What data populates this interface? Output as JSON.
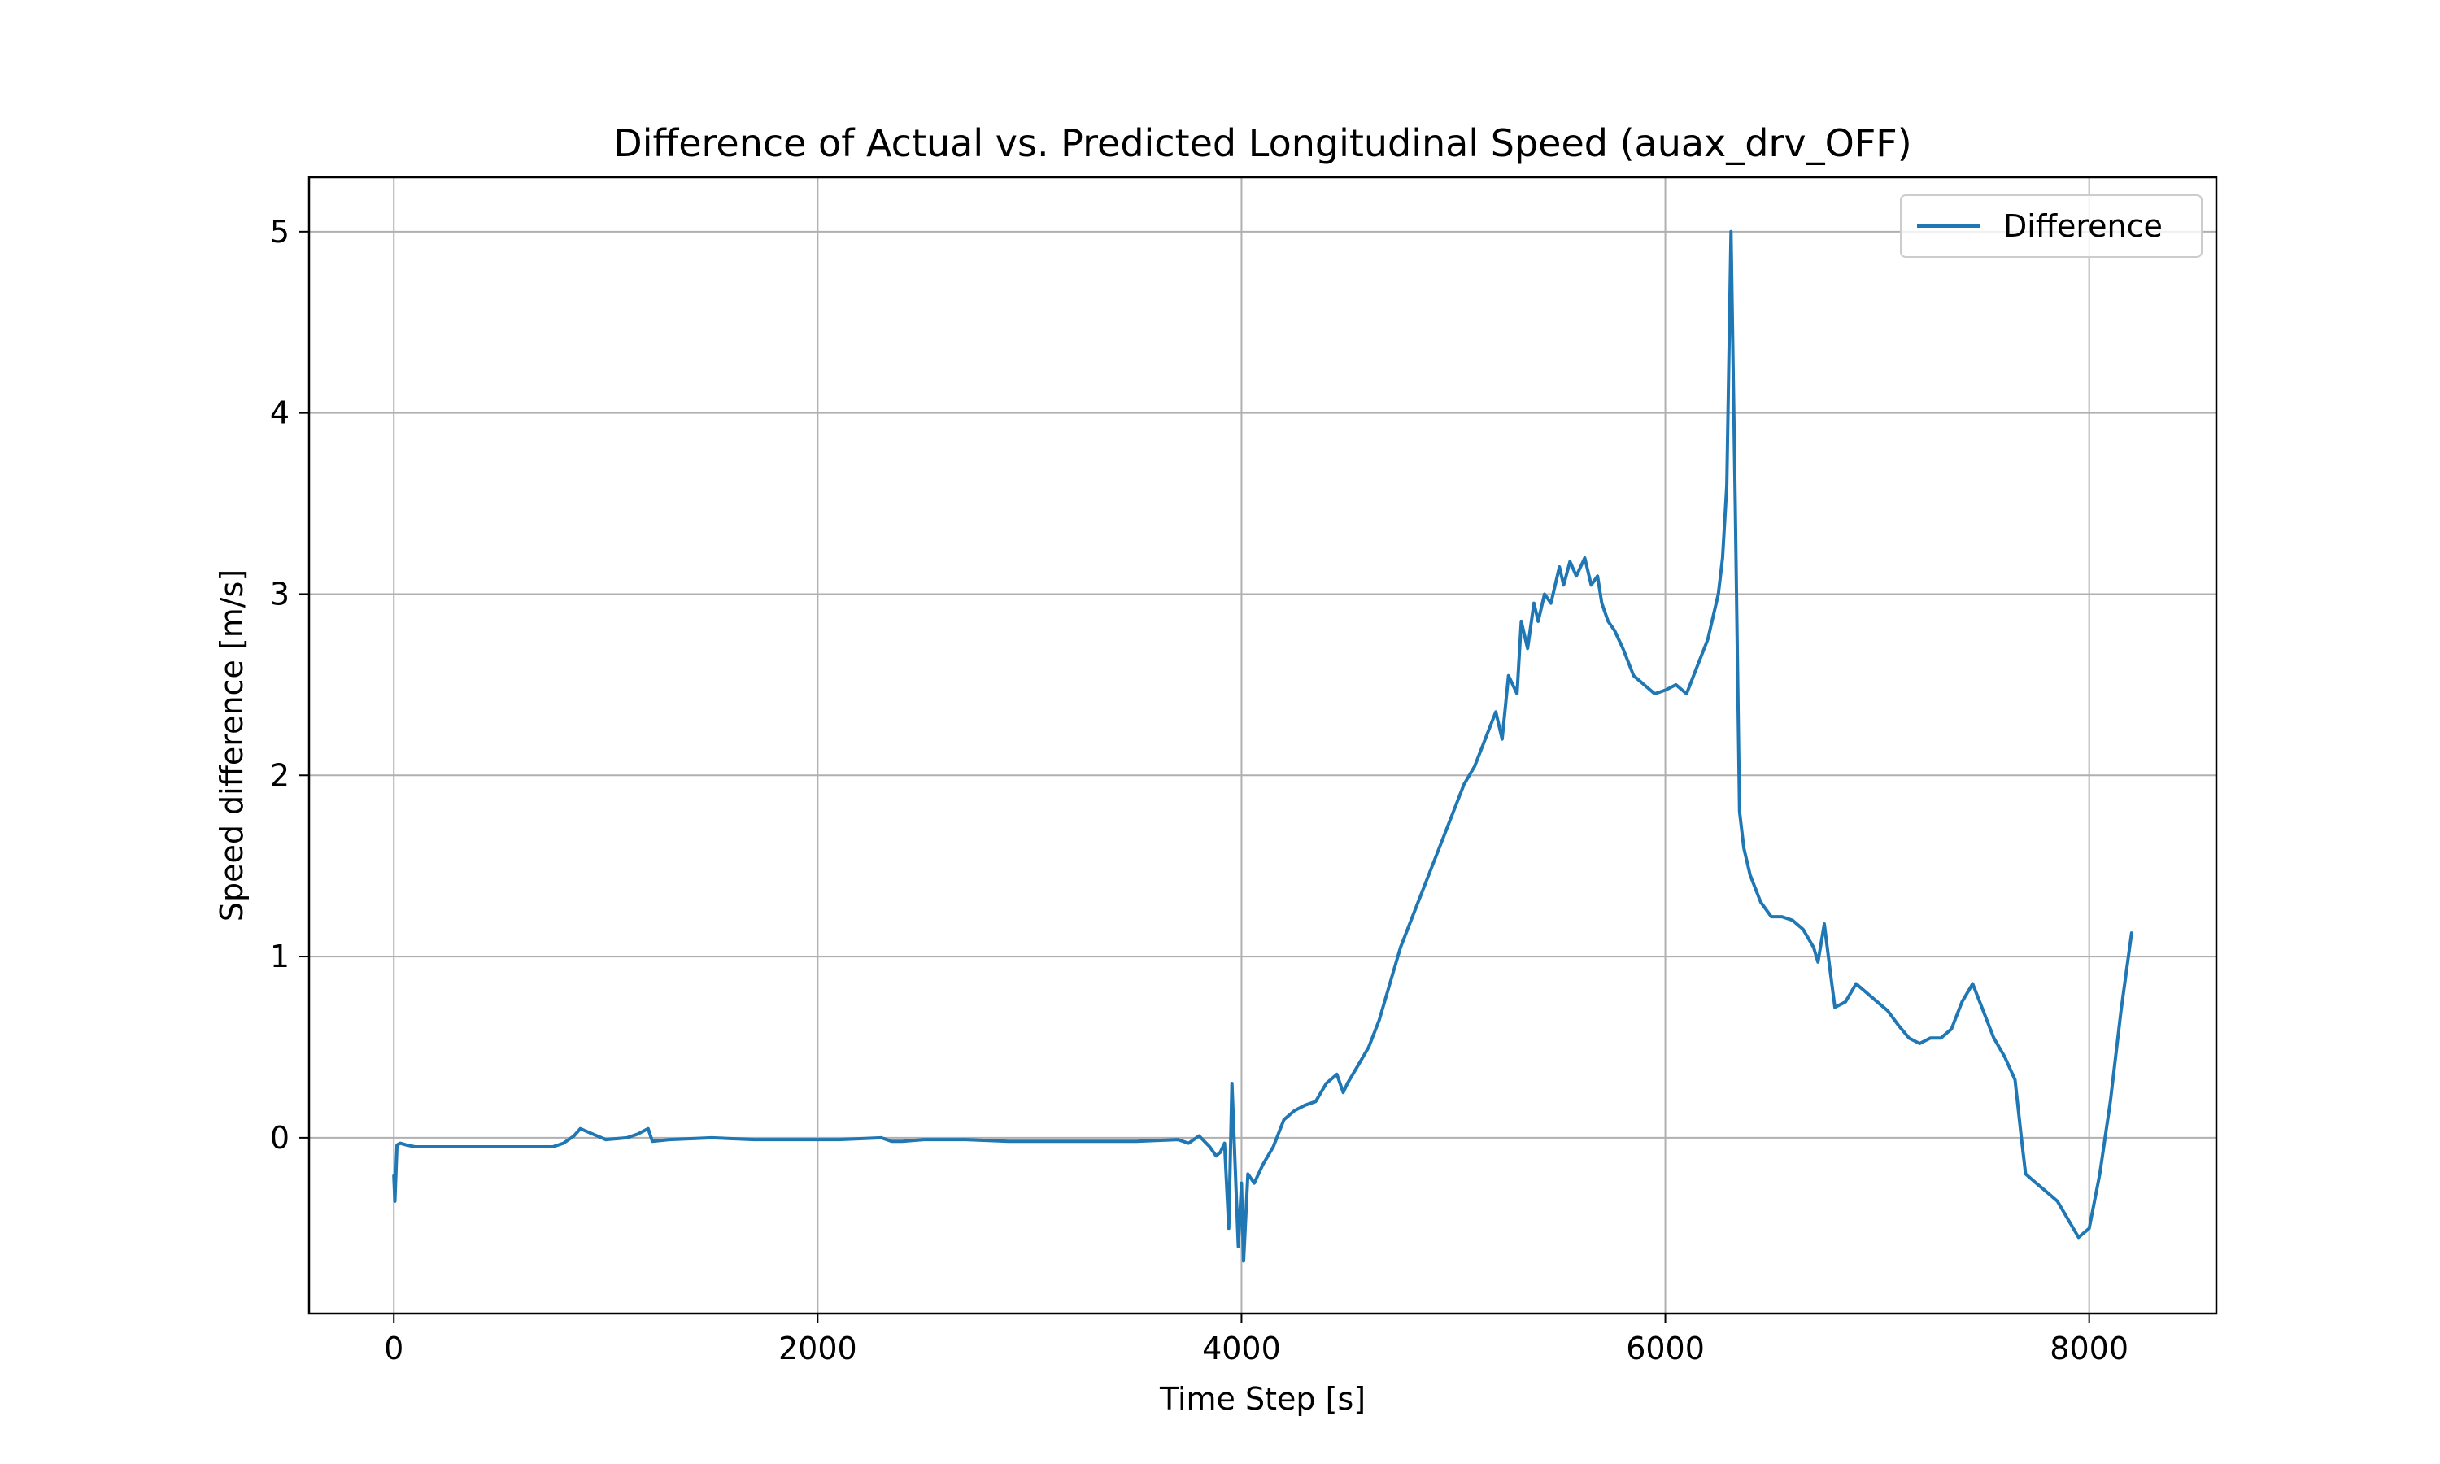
{
  "chart_data": {
    "type": "line",
    "title": "Difference of Actual vs. Predicted Longitudinal Speed (auax_drv_OFF)",
    "xlabel": "Time Step [s]",
    "ylabel": "Speed difference [m/s]",
    "xlim": [
      -400,
      8600
    ],
    "ylim": [
      -0.97,
      5.3
    ],
    "xticks": [
      0,
      2000,
      4000,
      6000,
      8000
    ],
    "yticks": [
      0,
      1,
      2,
      3,
      4,
      5
    ],
    "grid": true,
    "legend_position": "top-right",
    "series": [
      {
        "name": "Difference",
        "color": "#1f77b4",
        "x": [
          0,
          5,
          15,
          30,
          60,
          100,
          200,
          400,
          600,
          750,
          800,
          850,
          880,
          920,
          1000,
          1100,
          1150,
          1200,
          1220,
          1300,
          1500,
          1700,
          1900,
          2100,
          2300,
          2350,
          2400,
          2500,
          2700,
          2900,
          3100,
          3300,
          3500,
          3700,
          3750,
          3800,
          3850,
          3880,
          3900,
          3920,
          3940,
          3955,
          3970,
          3985,
          4000,
          4010,
          4030,
          4060,
          4100,
          4150,
          4200,
          4250,
          4300,
          4350,
          4400,
          4450,
          4480,
          4500,
          4550,
          4600,
          4650,
          4700,
          4750,
          4800,
          4850,
          4900,
          4950,
          5000,
          5050,
          5100,
          5150,
          5200,
          5230,
          5260,
          5300,
          5320,
          5350,
          5380,
          5400,
          5430,
          5460,
          5500,
          5520,
          5550,
          5580,
          5620,
          5650,
          5680,
          5700,
          5730,
          5760,
          5800,
          5850,
          5900,
          5950,
          6000,
          6050,
          6100,
          6150,
          6200,
          6250,
          6270,
          6290,
          6310,
          6330,
          6350,
          6370,
          6400,
          6450,
          6500,
          6550,
          6600,
          6650,
          6700,
          6720,
          6750,
          6780,
          6800,
          6850,
          6900,
          6950,
          7000,
          7050,
          7100,
          7150,
          7200,
          7250,
          7300,
          7350,
          7400,
          7450,
          7500,
          7550,
          7600,
          7650,
          7680,
          7700,
          7750,
          7800,
          7850,
          7900,
          7950,
          8000,
          8050,
          8100,
          8150,
          8200
        ],
        "values": [
          -0.21,
          -0.35,
          -0.04,
          -0.03,
          -0.04,
          -0.05,
          -0.05,
          -0.05,
          -0.05,
          -0.05,
          -0.03,
          0.01,
          0.05,
          0.03,
          -0.01,
          0.0,
          0.02,
          0.05,
          -0.02,
          -0.01,
          0.0,
          -0.01,
          -0.01,
          -0.01,
          0.0,
          -0.02,
          -0.02,
          -0.01,
          -0.01,
          -0.02,
          -0.02,
          -0.02,
          -0.02,
          -0.01,
          -0.03,
          0.01,
          -0.05,
          -0.1,
          -0.08,
          -0.03,
          -0.5,
          0.3,
          -0.15,
          -0.6,
          -0.25,
          -0.68,
          -0.2,
          -0.25,
          -0.15,
          -0.05,
          0.1,
          0.15,
          0.18,
          0.2,
          0.3,
          0.35,
          0.25,
          0.3,
          0.4,
          0.5,
          0.65,
          0.85,
          1.05,
          1.2,
          1.35,
          1.5,
          1.65,
          1.8,
          1.95,
          2.05,
          2.2,
          2.35,
          2.2,
          2.55,
          2.45,
          2.85,
          2.7,
          2.95,
          2.85,
          3.0,
          2.95,
          3.15,
          3.05,
          3.18,
          3.1,
          3.2,
          3.05,
          3.1,
          2.95,
          2.85,
          2.8,
          2.7,
          2.55,
          2.5,
          2.45,
          2.47,
          2.5,
          2.45,
          2.6,
          2.75,
          3.0,
          3.2,
          3.6,
          5.0,
          3.5,
          1.8,
          1.6,
          1.45,
          1.3,
          1.22,
          1.22,
          1.2,
          1.15,
          1.05,
          0.97,
          1.18,
          0.9,
          0.72,
          0.75,
          0.85,
          0.8,
          0.75,
          0.7,
          0.62,
          0.55,
          0.52,
          0.55,
          0.55,
          0.6,
          0.75,
          0.85,
          0.7,
          0.55,
          0.45,
          0.32,
          0.0,
          -0.2,
          -0.25,
          -0.3,
          -0.35,
          -0.45,
          -0.55,
          -0.5,
          -0.2,
          0.2,
          0.7,
          1.13
        ]
      }
    ]
  }
}
